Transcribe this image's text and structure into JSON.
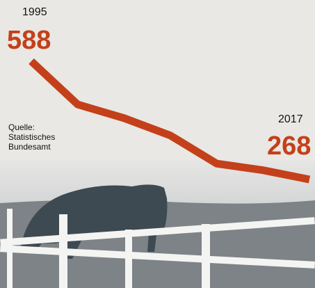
{
  "chart_data": {
    "type": "line",
    "categories": [
      "1995",
      null,
      null,
      null,
      null,
      null,
      "2017"
    ],
    "series": [
      {
        "color": "#c4401a",
        "values": [
          588,
          471,
          434,
          387,
          311,
          293,
          268
        ]
      }
    ],
    "source": "Quelle: Statistisches Bundesamt"
  }
}
